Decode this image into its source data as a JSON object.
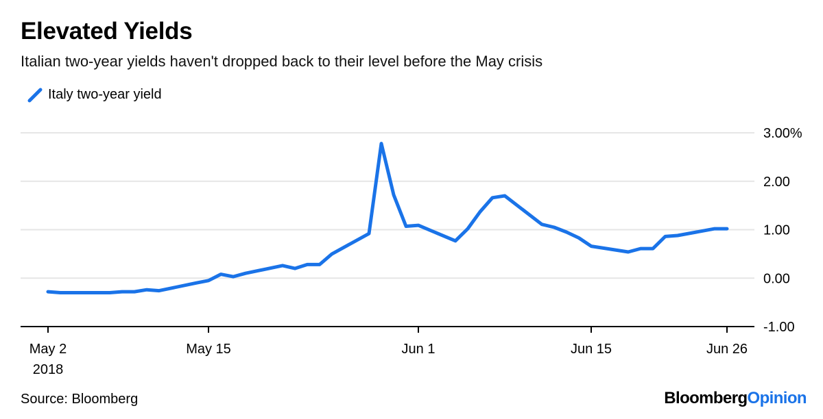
{
  "header": {
    "title": "Elevated Yields",
    "subtitle": "Italian two-year yields haven't dropped back to their level before the May crisis"
  },
  "footer": {
    "source": "Source: Bloomberg",
    "brand_part1": "Bloomberg",
    "brand_part2": "Opinion"
  },
  "colors": {
    "series": "#1a73e8",
    "grid": "#e6e6e6",
    "axis": "#000000"
  },
  "chart_data": {
    "type": "line",
    "title": "Elevated Yields",
    "subtitle": "Italian two-year yields haven't dropped back to their level before the May crisis",
    "xlabel": "",
    "ylabel": "",
    "ylim": [
      -1.0,
      3.0
    ],
    "y_ticks": [
      {
        "value": 3.0,
        "label": "3.00%"
      },
      {
        "value": 2.0,
        "label": "2.00"
      },
      {
        "value": 1.0,
        "label": "1.00"
      },
      {
        "value": 0.0,
        "label": "0.00"
      },
      {
        "value": -1.0,
        "label": "-1.00"
      }
    ],
    "x_ticks": [
      {
        "date": "2018-05-02",
        "label": "May 2",
        "sublabel": "2018"
      },
      {
        "date": "2018-05-15",
        "label": "May 15"
      },
      {
        "date": "2018-06-01",
        "label": "Jun 1"
      },
      {
        "date": "2018-06-15",
        "label": "Jun 15"
      },
      {
        "date": "2018-06-26",
        "label": "Jun 26"
      }
    ],
    "grid": true,
    "legend_position": "top-left",
    "series": [
      {
        "name": "Italy two-year yield",
        "x": [
          "2018-05-02",
          "2018-05-03",
          "2018-05-04",
          "2018-05-07",
          "2018-05-08",
          "2018-05-09",
          "2018-05-10",
          "2018-05-11",
          "2018-05-14",
          "2018-05-15",
          "2018-05-16",
          "2018-05-17",
          "2018-05-18",
          "2018-05-21",
          "2018-05-22",
          "2018-05-23",
          "2018-05-24",
          "2018-05-25",
          "2018-05-28",
          "2018-05-29",
          "2018-05-30",
          "2018-05-31",
          "2018-06-01",
          "2018-06-04",
          "2018-06-05",
          "2018-06-06",
          "2018-06-07",
          "2018-06-08",
          "2018-06-11",
          "2018-06-12",
          "2018-06-13",
          "2018-06-14",
          "2018-06-15",
          "2018-06-18",
          "2018-06-19",
          "2018-06-20",
          "2018-06-21",
          "2018-06-22",
          "2018-06-25",
          "2018-06-26"
        ],
        "values": [
          -0.28,
          -0.3,
          -0.3,
          -0.3,
          -0.28,
          -0.28,
          -0.24,
          -0.26,
          -0.1,
          -0.05,
          0.08,
          0.03,
          0.1,
          0.26,
          0.2,
          0.28,
          0.28,
          0.5,
          0.92,
          2.78,
          1.72,
          1.07,
          1.09,
          0.77,
          1.02,
          1.37,
          1.66,
          1.7,
          1.11,
          1.05,
          0.95,
          0.83,
          0.66,
          0.54,
          0.61,
          0.61,
          0.86,
          0.88,
          1.02,
          1.02
        ]
      }
    ]
  }
}
